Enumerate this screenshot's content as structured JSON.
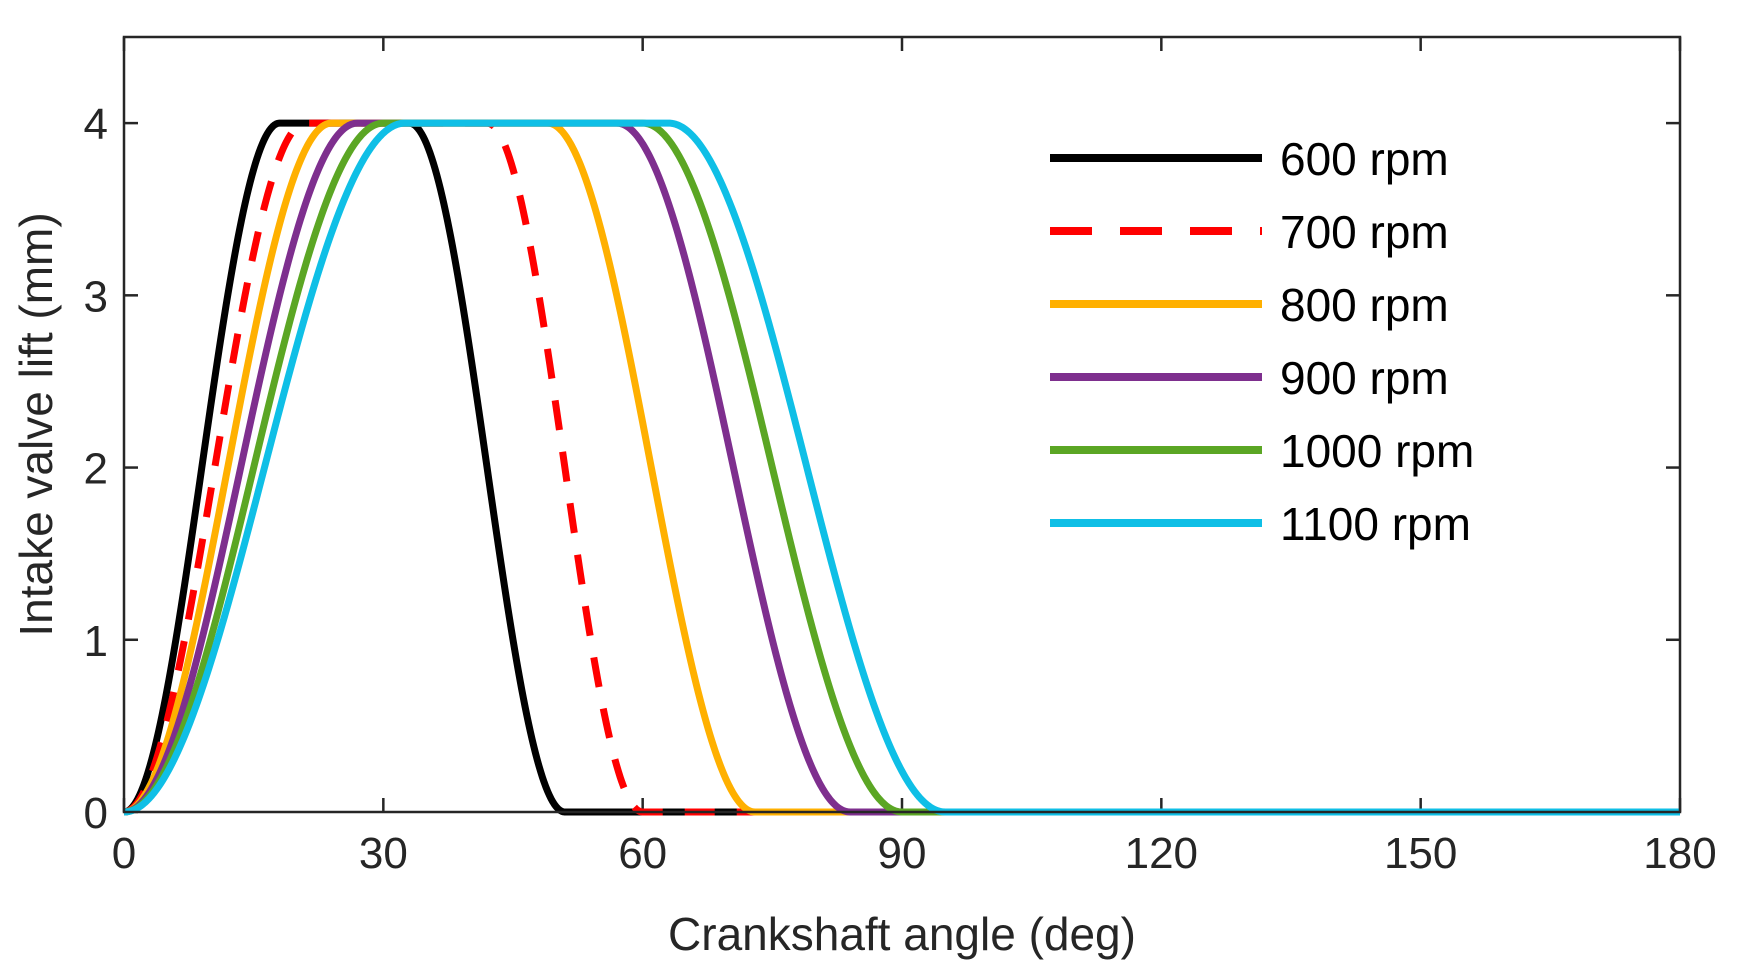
{
  "chart_data": {
    "type": "line",
    "title": "",
    "xlabel": "Crankshaft angle (deg)",
    "ylabel": "Intake valve lift (mm)",
    "xlim": [
      0,
      180
    ],
    "ylim": [
      0,
      4.5
    ],
    "xticks": [
      0,
      30,
      60,
      90,
      120,
      150,
      180
    ],
    "xtick_labels": [
      "0",
      "30",
      "60",
      "90",
      "120",
      "150",
      "180"
    ],
    "yticks": [
      0,
      1,
      2,
      3,
      4
    ],
    "ytick_labels": [
      "0",
      "1",
      "2",
      "3",
      "4"
    ],
    "grid": false,
    "legend_position": "top-right",
    "series": [
      {
        "name": "600 rpm",
        "color": "#000000",
        "style": "solid",
        "rise_start": 0,
        "rise_end": 18,
        "fall_start": 33,
        "fall_end": 51
      },
      {
        "name": "700 rpm",
        "color": "#ff0000",
        "style": "dashed",
        "rise_start": 0,
        "rise_end": 21,
        "fall_start": 42,
        "fall_end": 60
      },
      {
        "name": "800 rpm",
        "color": "#ffb000",
        "style": "solid",
        "rise_start": 0,
        "rise_end": 24,
        "fall_start": 49,
        "fall_end": 73
      },
      {
        "name": "900 rpm",
        "color": "#7e2f8e",
        "style": "solid",
        "rise_start": 0,
        "rise_end": 27,
        "fall_start": 57,
        "fall_end": 84
      },
      {
        "name": "1000 rpm",
        "color": "#5ba624",
        "style": "solid",
        "rise_start": 0,
        "rise_end": 30,
        "fall_start": 60,
        "fall_end": 90
      },
      {
        "name": "1100 rpm",
        "color": "#0fbfe6",
        "style": "solid",
        "rise_start": 0,
        "rise_end": 32.5,
        "fall_start": 63,
        "fall_end": 95
      }
    ],
    "peak_lift": 4
  }
}
